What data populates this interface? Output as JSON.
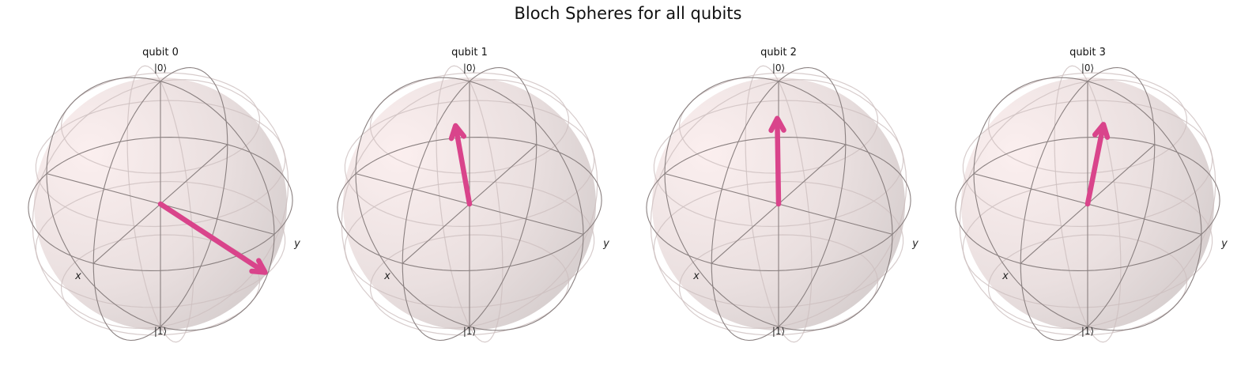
{
  "figure": {
    "title": "Bloch Spheres for all qubits"
  },
  "style": {
    "sphere_color": "#ecdcdc",
    "wire_color": "#8a8080",
    "arrow_color": "#d9448b"
  },
  "chart_data": [
    {
      "type": "bloch-sphere",
      "title": "qubit 0",
      "labels": {
        "top": "|0⟩",
        "bottom": "|1⟩",
        "x": "x",
        "y": "y"
      },
      "bloch_vector": {
        "x": 0.0,
        "y": 0.92,
        "z": -0.33
      }
    },
    {
      "type": "bloch-sphere",
      "title": "qubit 1",
      "labels": {
        "top": "|0⟩",
        "bottom": "|1⟩",
        "x": "x",
        "y": "y"
      },
      "bloch_vector": {
        "x": -0.25,
        "y": -0.27,
        "z": 0.45
      }
    },
    {
      "type": "bloch-sphere",
      "title": "qubit 2",
      "labels": {
        "top": "|0⟩",
        "bottom": "|1⟩",
        "x": "x",
        "y": "y"
      },
      "bloch_vector": {
        "x": -0.15,
        "y": -0.1,
        "z": 0.6
      }
    },
    {
      "type": "bloch-sphere",
      "title": "qubit 3",
      "labels": {
        "top": "|0⟩",
        "bottom": "|1⟩",
        "x": "x",
        "y": "y"
      },
      "bloch_vector": {
        "x": -0.1,
        "y": 0.08,
        "z": 0.62
      }
    }
  ]
}
